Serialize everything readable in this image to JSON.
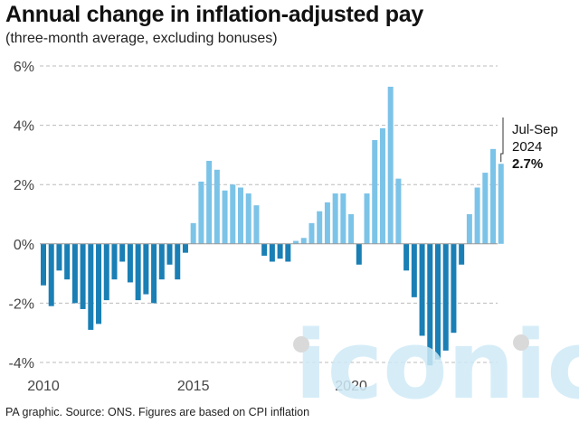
{
  "header": {
    "title": "Annual change in inflation-adjusted pay",
    "subtitle": "(three-month average, excluding bonuses)"
  },
  "footer": {
    "source": "PA graphic. Source: ONS. Figures are based on CPI inflation"
  },
  "watermark": {
    "text": "iconic"
  },
  "colors": {
    "negative": "#1a7fb5",
    "positive": "#7cc3e8",
    "grid": "#bbbbbb",
    "axis": "#999999"
  },
  "chart_data": {
    "type": "bar",
    "title": "Annual change in inflation-adjusted pay",
    "subtitle": "(three-month average, excluding bonuses)",
    "xlabel": "",
    "ylabel": "",
    "ylim": [
      -4,
      6
    ],
    "yticks": [
      -4,
      -2,
      0,
      2,
      4,
      6
    ],
    "ytick_labels": [
      "-4%",
      "-2%",
      "0%",
      "2%",
      "4%",
      "6%"
    ],
    "xticks": [
      {
        "label": "2010",
        "index": 0
      },
      {
        "label": "2015",
        "index": 19
      },
      {
        "label": "2020",
        "index": 39
      }
    ],
    "grid": true,
    "values": [
      -1.4,
      -2.1,
      -0.9,
      -1.2,
      -2.0,
      -2.2,
      -2.9,
      -2.7,
      -1.9,
      -1.2,
      -0.6,
      -1.3,
      -1.9,
      -1.7,
      -2.0,
      -1.2,
      -0.7,
      -1.2,
      -0.3,
      0.7,
      2.1,
      2.8,
      2.5,
      1.8,
      2.0,
      1.9,
      1.7,
      1.3,
      -0.4,
      -0.6,
      -0.5,
      -0.6,
      0.1,
      0.2,
      0.7,
      1.1,
      1.4,
      1.7,
      1.7,
      1.0,
      -0.7,
      1.7,
      3.5,
      3.9,
      5.3,
      2.2,
      -0.9,
      -1.8,
      -3.1,
      -4.1,
      -3.9,
      -3.6,
      -3.0,
      -0.7,
      1.0,
      1.9,
      2.4,
      3.2,
      2.7
    ],
    "annotation": {
      "period": "Jul-Sep",
      "year": "2024",
      "value": "2.7%"
    }
  }
}
